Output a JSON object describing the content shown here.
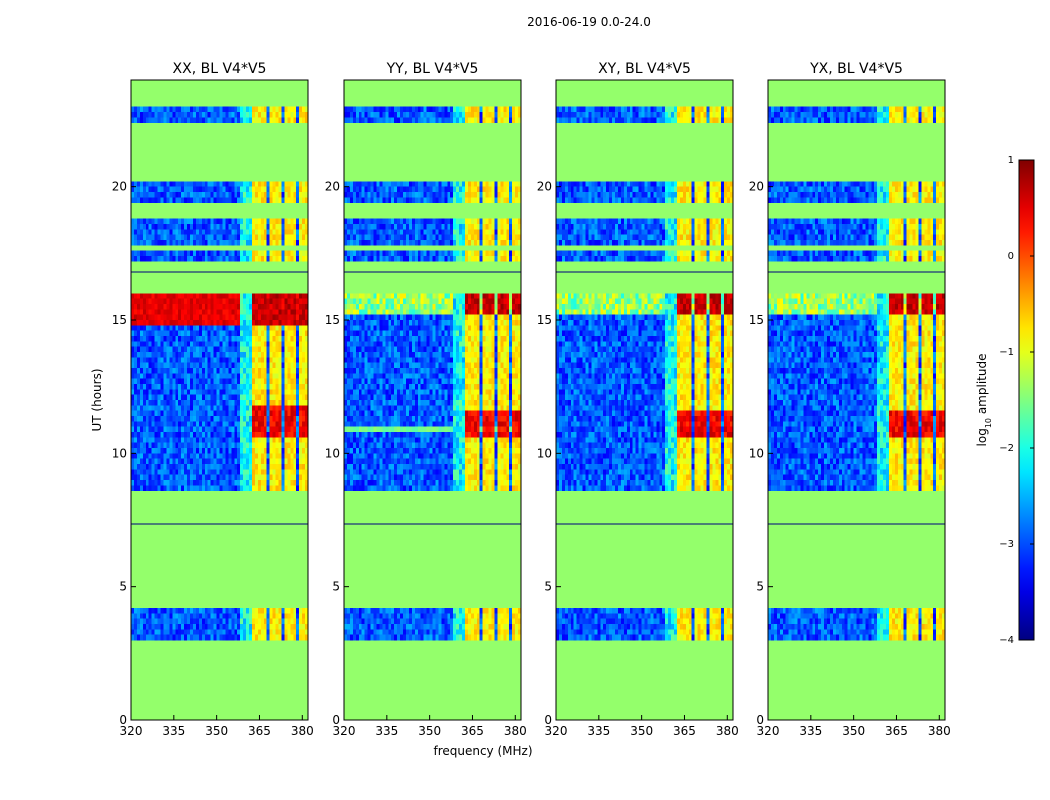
{
  "suptitle": "2016-06-19 0.0-24.0",
  "chart_data": {
    "type": "heatmap",
    "title": "2016-06-19 0.0-24.0",
    "xlabel": "frequency (MHz)",
    "ylabel": "UT (hours)",
    "xlim": [
      320,
      382
    ],
    "ylim": [
      0,
      24
    ],
    "x_ticks": [
      320,
      335,
      350,
      365,
      380
    ],
    "y_ticks": [
      0,
      5,
      10,
      15,
      20
    ],
    "panels": [
      {
        "title": "XX, BL V4*V5",
        "polarization": "XX",
        "peak_band": [
          14.8,
          16.0
        ],
        "secondary_peak": [
          10.6,
          11.8
        ],
        "secondary_peak_full_width": false
      },
      {
        "title": "YY, BL V4*V5",
        "polarization": "YY",
        "peak_band": [
          15.2,
          16.0
        ],
        "secondary_peak": [
          10.6,
          11.6
        ],
        "secondary_peak_full_width": true
      },
      {
        "title": "XY, BL V4*V5",
        "polarization": "XY",
        "peak_band": [
          15.3,
          15.9
        ],
        "secondary_peak": [
          10.6,
          11.6
        ],
        "secondary_peak_full_width": false
      },
      {
        "title": "YX, BL V4*V5",
        "polarization": "YX",
        "peak_band": [
          15.3,
          15.9
        ],
        "secondary_peak": [
          10.6,
          11.6
        ],
        "secondary_peak_full_width": false
      }
    ],
    "data_segments_ut": [
      [
        2.9,
        4.3
      ],
      [
        8.6,
        13.0
      ],
      [
        13.0,
        15.0
      ],
      [
        15.0,
        16.0
      ],
      [
        17.3,
        17.5
      ],
      [
        17.8,
        18.8
      ],
      [
        19.5,
        20.2
      ],
      [
        22.5,
        23.0
      ]
    ],
    "masked_lines_ut": [
      7.35,
      16.8
    ],
    "rfi_bands_mhz": [
      [
        362,
        368
      ],
      [
        369,
        373
      ],
      [
        374,
        378
      ],
      [
        379,
        382
      ]
    ],
    "colorbar": {
      "label": "log10 amplitude",
      "label_text": "log",
      "label_sub": "10",
      "label_rest": " amplitude",
      "range": [
        -4,
        1
      ],
      "ticks": [
        "1",
        "0",
        "−1",
        "−2",
        "−3",
        "−4"
      ],
      "tick_values": [
        1,
        0,
        -1,
        -2,
        -3,
        -4
      ],
      "colormap": "jet"
    },
    "masked_value": -1.4
  }
}
